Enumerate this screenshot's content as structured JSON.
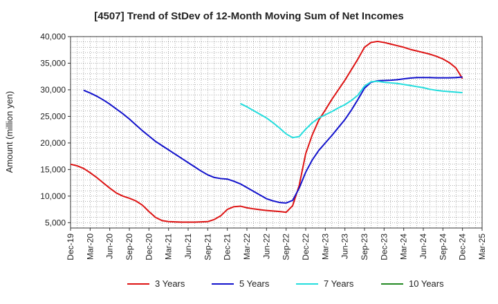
{
  "chart_data": {
    "type": "line",
    "title": "[4507]  Trend of StDev of 12-Month Moving Sum of Net Incomes",
    "xlabel": "",
    "ylabel": "Amount (million yen)",
    "ylim": [
      4000,
      40000
    ],
    "yticks": [
      5000,
      10000,
      15000,
      20000,
      25000,
      30000,
      35000,
      40000
    ],
    "ytick_labels": [
      "5,000",
      "10,000",
      "15,000",
      "20,000",
      "25,000",
      "30,000",
      "35,000",
      "40,000"
    ],
    "xlim": [
      "2019-12",
      "2025-03"
    ],
    "xtick_labels": [
      "Dec-19",
      "Mar-20",
      "Jun-20",
      "Sep-20",
      "Dec-20",
      "Mar-21",
      "Jun-21",
      "Sep-21",
      "Dec-21",
      "Mar-22",
      "Jun-22",
      "Sep-22",
      "Dec-22",
      "Mar-23",
      "Jun-23",
      "Sep-23",
      "Dec-23",
      "Mar-24",
      "Jun-24",
      "Sep-24",
      "Dec-24",
      "Mar-25"
    ],
    "grid": true,
    "legend_position": "bottom",
    "series": [
      {
        "name": "3 Years",
        "color": "#dd1111",
        "points": [
          [
            "2019-12",
            16000
          ],
          [
            "2020-01",
            15700
          ],
          [
            "2020-02",
            15200
          ],
          [
            "2020-03",
            14400
          ],
          [
            "2020-04",
            13500
          ],
          [
            "2020-05",
            12500
          ],
          [
            "2020-06",
            11500
          ],
          [
            "2020-07",
            10600
          ],
          [
            "2020-08",
            10000
          ],
          [
            "2020-09",
            9600
          ],
          [
            "2020-10",
            9100
          ],
          [
            "2020-11",
            8300
          ],
          [
            "2020-12",
            7100
          ],
          [
            "2021-01",
            6000
          ],
          [
            "2021-02",
            5400
          ],
          [
            "2021-03",
            5200
          ],
          [
            "2021-04",
            5150
          ],
          [
            "2021-05",
            5100
          ],
          [
            "2021-06",
            5100
          ],
          [
            "2021-07",
            5100
          ],
          [
            "2021-08",
            5150
          ],
          [
            "2021-09",
            5200
          ],
          [
            "2021-10",
            5600
          ],
          [
            "2021-11",
            6300
          ],
          [
            "2021-12",
            7500
          ],
          [
            "2022-01",
            8000
          ],
          [
            "2022-02",
            8100
          ],
          [
            "2022-03",
            7800
          ],
          [
            "2022-04",
            7600
          ],
          [
            "2022-05",
            7450
          ],
          [
            "2022-06",
            7300
          ],
          [
            "2022-07",
            7200
          ],
          [
            "2022-08",
            7100
          ],
          [
            "2022-09",
            6950
          ],
          [
            "2022-10",
            8200
          ],
          [
            "2022-11",
            12000
          ],
          [
            "2022-12",
            18000
          ],
          [
            "2023-01",
            21500
          ],
          [
            "2023-02",
            24300
          ],
          [
            "2023-03",
            26200
          ],
          [
            "2023-04",
            28200
          ],
          [
            "2023-05",
            30000
          ],
          [
            "2023-06",
            31800
          ],
          [
            "2023-07",
            33800
          ],
          [
            "2023-08",
            35800
          ],
          [
            "2023-09",
            38000
          ],
          [
            "2023-10",
            38900
          ],
          [
            "2023-11",
            39100
          ],
          [
            "2023-12",
            38900
          ],
          [
            "2024-01",
            38600
          ],
          [
            "2024-02",
            38300
          ],
          [
            "2024-03",
            38000
          ],
          [
            "2024-04",
            37600
          ],
          [
            "2024-05",
            37300
          ],
          [
            "2024-06",
            37000
          ],
          [
            "2024-07",
            36700
          ],
          [
            "2024-08",
            36300
          ],
          [
            "2024-09",
            35800
          ],
          [
            "2024-10",
            35100
          ],
          [
            "2024-11",
            34100
          ],
          [
            "2024-12",
            32100
          ]
        ]
      },
      {
        "name": "5 Years",
        "color": "#1111cc",
        "points": [
          [
            "2020-02",
            29900
          ],
          [
            "2020-03",
            29400
          ],
          [
            "2020-04",
            28800
          ],
          [
            "2020-05",
            28100
          ],
          [
            "2020-06",
            27300
          ],
          [
            "2020-07",
            26400
          ],
          [
            "2020-08",
            25500
          ],
          [
            "2020-09",
            24500
          ],
          [
            "2020-10",
            23400
          ],
          [
            "2020-11",
            22300
          ],
          [
            "2020-12",
            21300
          ],
          [
            "2021-01",
            20300
          ],
          [
            "2021-02",
            19500
          ],
          [
            "2021-03",
            18700
          ],
          [
            "2021-04",
            17900
          ],
          [
            "2021-05",
            17100
          ],
          [
            "2021-06",
            16300
          ],
          [
            "2021-07",
            15500
          ],
          [
            "2021-08",
            14700
          ],
          [
            "2021-09",
            14000
          ],
          [
            "2021-10",
            13500
          ],
          [
            "2021-11",
            13300
          ],
          [
            "2021-12",
            13200
          ],
          [
            "2022-01",
            12800
          ],
          [
            "2022-02",
            12300
          ],
          [
            "2022-03",
            11600
          ],
          [
            "2022-04",
            10900
          ],
          [
            "2022-05",
            10200
          ],
          [
            "2022-06",
            9500
          ],
          [
            "2022-07",
            9100
          ],
          [
            "2022-08",
            8800
          ],
          [
            "2022-09",
            8700
          ],
          [
            "2022-10",
            9200
          ],
          [
            "2022-11",
            11500
          ],
          [
            "2022-12",
            14500
          ],
          [
            "2023-01",
            16800
          ],
          [
            "2023-02",
            18600
          ],
          [
            "2023-03",
            20000
          ],
          [
            "2023-04",
            21400
          ],
          [
            "2023-05",
            22900
          ],
          [
            "2023-06",
            24400
          ],
          [
            "2023-07",
            26200
          ],
          [
            "2023-08",
            28200
          ],
          [
            "2023-09",
            30300
          ],
          [
            "2023-10",
            31400
          ],
          [
            "2023-11",
            31700
          ],
          [
            "2023-12",
            31750
          ],
          [
            "2024-01",
            31800
          ],
          [
            "2024-02",
            31900
          ],
          [
            "2024-03",
            32050
          ],
          [
            "2024-04",
            32200
          ],
          [
            "2024-05",
            32300
          ],
          [
            "2024-06",
            32300
          ],
          [
            "2024-07",
            32300
          ],
          [
            "2024-08",
            32250
          ],
          [
            "2024-09",
            32250
          ],
          [
            "2024-10",
            32250
          ],
          [
            "2024-11",
            32300
          ],
          [
            "2024-12",
            32400
          ]
        ]
      },
      {
        "name": "7 Years",
        "color": "#22dddd",
        "points": [
          [
            "2022-02",
            27400
          ],
          [
            "2022-03",
            26800
          ],
          [
            "2022-04",
            26100
          ],
          [
            "2022-05",
            25400
          ],
          [
            "2022-06",
            24700
          ],
          [
            "2022-07",
            23800
          ],
          [
            "2022-08",
            22800
          ],
          [
            "2022-09",
            21700
          ],
          [
            "2022-10",
            21000
          ],
          [
            "2022-11",
            21200
          ],
          [
            "2022-12",
            22600
          ],
          [
            "2023-01",
            23800
          ],
          [
            "2023-02",
            24700
          ],
          [
            "2023-03",
            25300
          ],
          [
            "2023-04",
            25900
          ],
          [
            "2023-05",
            26600
          ],
          [
            "2023-06",
            27200
          ],
          [
            "2023-07",
            28000
          ],
          [
            "2023-08",
            29000
          ],
          [
            "2023-09",
            30700
          ],
          [
            "2023-10",
            31500
          ],
          [
            "2023-11",
            31600
          ],
          [
            "2023-12",
            31400
          ],
          [
            "2024-01",
            31300
          ],
          [
            "2024-02",
            31200
          ],
          [
            "2024-03",
            31000
          ],
          [
            "2024-04",
            30800
          ],
          [
            "2024-05",
            30600
          ],
          [
            "2024-06",
            30400
          ],
          [
            "2024-07",
            30100
          ],
          [
            "2024-08",
            29900
          ],
          [
            "2024-09",
            29750
          ],
          [
            "2024-10",
            29650
          ],
          [
            "2024-11",
            29550
          ],
          [
            "2024-12",
            29450
          ]
        ]
      },
      {
        "name": "10 Years",
        "color": "#228822",
        "points": []
      }
    ]
  }
}
